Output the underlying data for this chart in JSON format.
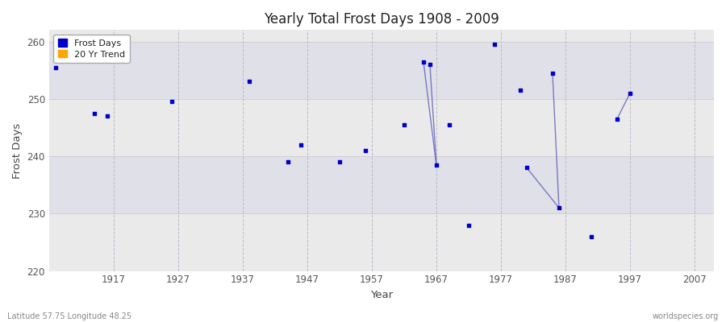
{
  "title": "Yearly Total Frost Days 1908 - 2009",
  "xlabel": "Year",
  "ylabel": "Frost Days",
  "xlim": [
    1907,
    2010
  ],
  "ylim": [
    220,
    262
  ],
  "yticks": [
    220,
    230,
    240,
    250,
    260
  ],
  "xticks": [
    1917,
    1927,
    1937,
    1947,
    1957,
    1967,
    1977,
    1987,
    1997,
    2007
  ],
  "scatter_color": "#0000CC",
  "trend_color": "#6666BB",
  "scatter_points": [
    [
      1908,
      255.5
    ],
    [
      1914,
      247.5
    ],
    [
      1916,
      247.0
    ],
    [
      1926,
      249.5
    ],
    [
      1938,
      253.0
    ],
    [
      1944,
      239.0
    ],
    [
      1946,
      242.0
    ],
    [
      1952,
      239.0
    ],
    [
      1956,
      241.0
    ],
    [
      1962,
      245.5
    ],
    [
      1965,
      256.5
    ],
    [
      1966,
      256.0
    ],
    [
      1967,
      238.5
    ],
    [
      1969,
      245.5
    ],
    [
      1972,
      228.0
    ],
    [
      1976,
      259.5
    ],
    [
      1980,
      251.5
    ],
    [
      1981,
      238.0
    ],
    [
      1985,
      254.5
    ],
    [
      1986,
      231.0
    ],
    [
      1991,
      226.0
    ],
    [
      1995,
      246.5
    ],
    [
      1997,
      251.0
    ]
  ],
  "trend_lines": [
    [
      [
        1965,
        256.5
      ],
      [
        1967,
        238.5
      ]
    ],
    [
      [
        1966,
        256.0
      ],
      [
        1967,
        238.5
      ]
    ],
    [
      [
        1981,
        238.0
      ],
      [
        1986,
        231.0
      ]
    ],
    [
      [
        1985,
        254.5
      ],
      [
        1986,
        231.0
      ]
    ],
    [
      [
        1995,
        246.5
      ],
      [
        1997,
        251.0
      ]
    ]
  ],
  "band_colors": [
    "#EAEAEA",
    "#E0E0E8"
  ],
  "footer_left": "Latitude 57.75 Longitude 48.25",
  "footer_right": "worldspecies.org",
  "legend_entries": [
    "Frost Days",
    "20 Yr Trend"
  ],
  "legend_colors": [
    "#0000CC",
    "#FFA500"
  ],
  "fig_facecolor": "#FFFFFF",
  "ax_facecolor": "#EFEFEF"
}
